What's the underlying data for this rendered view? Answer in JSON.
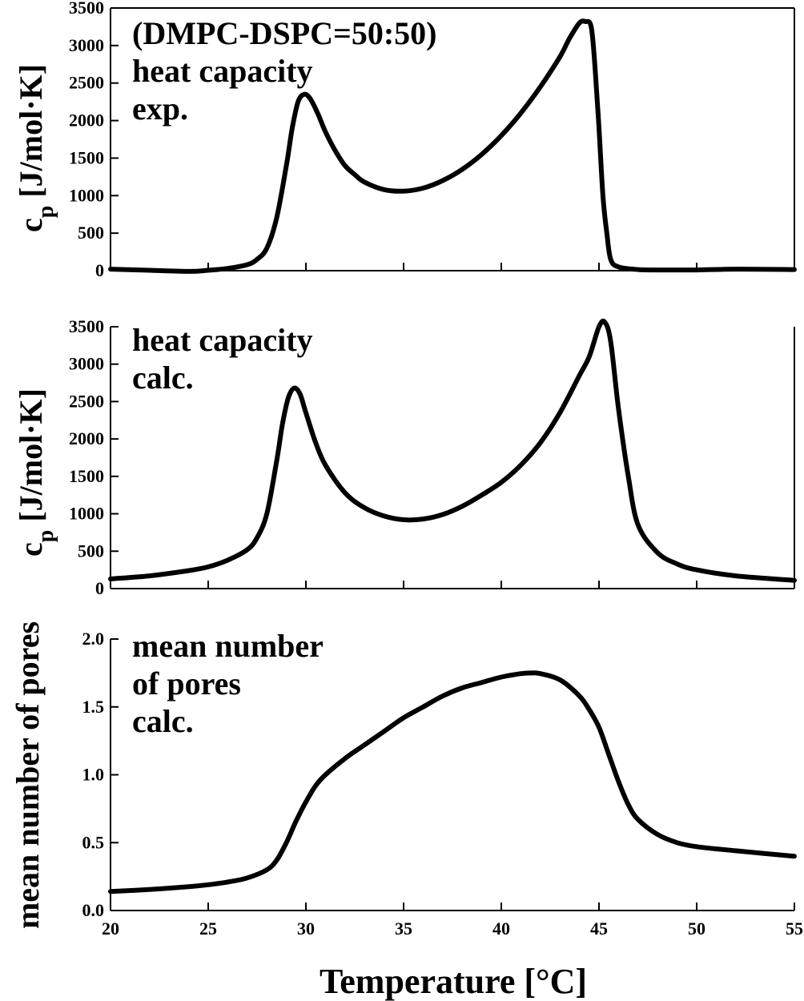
{
  "figure": {
    "xlabel": "Temperature [°C]"
  },
  "chart_data": [
    {
      "type": "line",
      "panel": "top",
      "annotation_lines": [
        "(DMPC-DSPC=50:50)",
        "heat capacity",
        "exp."
      ],
      "ylabel_main": "c",
      "ylabel_sub": "p",
      "ylabel_rest": " [J/mol·K]",
      "xlim": [
        20,
        55
      ],
      "ylim": [
        0,
        3500
      ],
      "yticks": [
        0,
        500,
        1000,
        1500,
        2000,
        2500,
        3000,
        3500
      ],
      "ytick_labels": [
        "0",
        "500",
        "1000",
        "1500",
        "2000",
        "2500",
        "3000",
        "3500"
      ],
      "xticks": [
        20,
        25,
        30,
        35,
        40,
        45,
        50,
        55
      ],
      "series": [
        {
          "name": "heat capacity exp.",
          "x": [
            20,
            22,
            24,
            25,
            26,
            27,
            27.5,
            28,
            28.5,
            29,
            29.3,
            29.6,
            29.9,
            30.2,
            30.6,
            31,
            31.5,
            32,
            32.5,
            33,
            34,
            35,
            36,
            37,
            38,
            39,
            40,
            41,
            42,
            43,
            43.5,
            44,
            44.3,
            44.6,
            44.8,
            45,
            45.2,
            45.4,
            45.6,
            46,
            47,
            48,
            50,
            52,
            55
          ],
          "y": [
            20,
            5,
            -10,
            5,
            30,
            80,
            150,
            300,
            700,
            1400,
            1900,
            2250,
            2350,
            2300,
            2100,
            1850,
            1600,
            1400,
            1280,
            1180,
            1080,
            1060,
            1100,
            1200,
            1350,
            1550,
            1800,
            2100,
            2450,
            2850,
            3100,
            3300,
            3320,
            3250,
            2700,
            1900,
            1000,
            500,
            150,
            50,
            15,
            10,
            10,
            20,
            15
          ]
        }
      ]
    },
    {
      "type": "line",
      "panel": "middle",
      "annotation_lines": [
        "heat capacity",
        "calc."
      ],
      "ylabel_main": "c",
      "ylabel_sub": "p",
      "ylabel_rest": " [J/mol·K]",
      "xlim": [
        20,
        55
      ],
      "ylim": [
        0,
        3500
      ],
      "yticks": [
        0,
        500,
        1000,
        1500,
        2000,
        2500,
        3000,
        3500
      ],
      "ytick_labels": [
        "0",
        "500",
        "1000",
        "1500",
        "2000",
        "2500",
        "3000",
        "3500"
      ],
      "xticks": [
        20,
        25,
        30,
        35,
        40,
        45,
        50,
        55
      ],
      "series": [
        {
          "name": "heat capacity calc.",
          "x": [
            20,
            22,
            24,
            25,
            26,
            27,
            27.5,
            28,
            28.5,
            28.8,
            29.1,
            29.4,
            29.7,
            30,
            30.5,
            31,
            32,
            33,
            34,
            35,
            36,
            37,
            38,
            39,
            40,
            41,
            42,
            43,
            44,
            44.5,
            45,
            45.3,
            45.6,
            46,
            46.5,
            47,
            48,
            49,
            50,
            52,
            55
          ],
          "y": [
            130,
            170,
            240,
            290,
            380,
            520,
            680,
            1000,
            1700,
            2200,
            2550,
            2680,
            2600,
            2350,
            1950,
            1650,
            1280,
            1080,
            970,
            920,
            930,
            990,
            1100,
            1250,
            1420,
            1650,
            1950,
            2350,
            2850,
            3100,
            3500,
            3560,
            3300,
            2400,
            1500,
            850,
            480,
            330,
            250,
            170,
            110
          ]
        }
      ]
    },
    {
      "type": "line",
      "panel": "bottom",
      "annotation_lines": [
        "mean number",
        "of pores",
        "calc."
      ],
      "ylabel": "mean number of pores",
      "xlim": [
        20,
        55
      ],
      "ylim": [
        0,
        2.0
      ],
      "yticks": [
        0,
        0.5,
        1.0,
        1.5,
        2.0
      ],
      "ytick_labels": [
        "0.0",
        "0.5",
        "1.0",
        "1.5",
        "2.0"
      ],
      "xticks": [
        20,
        25,
        30,
        35,
        40,
        45,
        50,
        55
      ],
      "xtick_labels": [
        "20",
        "25",
        "30",
        "35",
        "40",
        "45",
        "50",
        "55"
      ],
      "series": [
        {
          "name": "mean number of pores calc.",
          "x": [
            20,
            22,
            24,
            25,
            26,
            27,
            28,
            28.5,
            29,
            29.5,
            30,
            30.5,
            31,
            32,
            33,
            34,
            35,
            36,
            37,
            38,
            39,
            40,
            41,
            41.5,
            42,
            43,
            44,
            44.5,
            45,
            45.5,
            46,
            46.5,
            47,
            48,
            49,
            50,
            52,
            55
          ],
          "y": [
            0.14,
            0.155,
            0.175,
            0.19,
            0.21,
            0.24,
            0.3,
            0.37,
            0.5,
            0.66,
            0.8,
            0.92,
            1.0,
            1.12,
            1.22,
            1.32,
            1.42,
            1.5,
            1.58,
            1.64,
            1.68,
            1.72,
            1.745,
            1.75,
            1.745,
            1.7,
            1.58,
            1.48,
            1.35,
            1.15,
            0.95,
            0.78,
            0.67,
            0.56,
            0.5,
            0.47,
            0.44,
            0.4
          ]
        }
      ]
    }
  ]
}
